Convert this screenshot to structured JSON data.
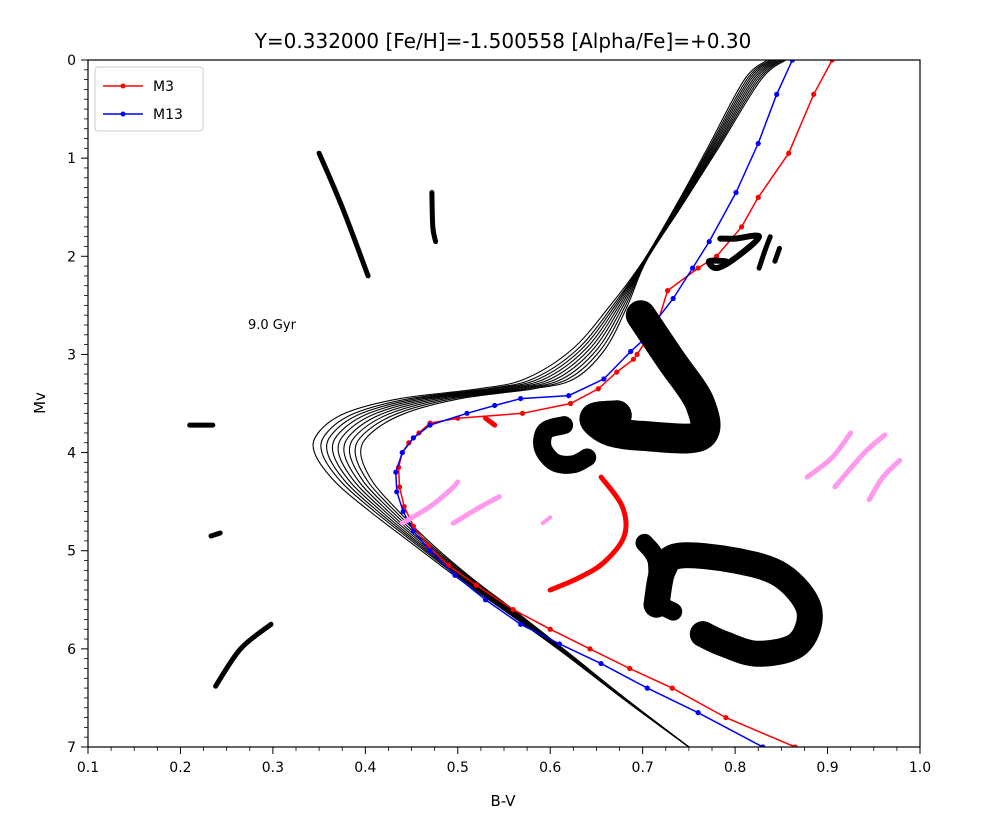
{
  "chart_data": {
    "type": "line",
    "title": "Y=0.332000 [Fe/H]=-1.500558 [Alpha/Fe]=+0.30",
    "xlabel": "B-V",
    "ylabel": "Mv",
    "xlim": [
      0.1,
      1.0
    ],
    "ylim": [
      0,
      7
    ],
    "y_inverted": true,
    "xticks": [
      "0.1",
      "0.2",
      "0.3",
      "0.4",
      "0.5",
      "0.6",
      "0.7",
      "0.8",
      "0.9",
      "1.0"
    ],
    "yticks": [
      "0",
      "1",
      "2",
      "3",
      "4",
      "5",
      "6",
      "7"
    ],
    "legend_position": "top-left",
    "annotation": "9.0 Gyr",
    "series": [
      {
        "name": "M3",
        "color": "#ff0000",
        "marker": true,
        "points": [
          [
            0.905,
            0.0
          ],
          [
            0.885,
            0.35
          ],
          [
            0.858,
            0.95
          ],
          [
            0.825,
            1.4
          ],
          [
            0.807,
            1.7
          ],
          [
            0.78,
            2.0
          ],
          [
            0.76,
            2.12
          ],
          [
            0.727,
            2.35
          ],
          [
            0.716,
            2.68
          ],
          [
            0.694,
            3.0
          ],
          [
            0.69,
            3.05
          ],
          [
            0.672,
            3.18
          ],
          [
            0.652,
            3.35
          ],
          [
            0.622,
            3.5
          ],
          [
            0.57,
            3.6
          ],
          [
            0.5,
            3.65
          ],
          [
            0.47,
            3.7
          ],
          [
            0.458,
            3.8
          ],
          [
            0.447,
            3.9
          ],
          [
            0.44,
            4.0
          ],
          [
            0.436,
            4.15
          ],
          [
            0.437,
            4.35
          ],
          [
            0.442,
            4.55
          ],
          [
            0.452,
            4.75
          ],
          [
            0.468,
            4.95
          ],
          [
            0.49,
            5.15
          ],
          [
            0.52,
            5.35
          ],
          [
            0.56,
            5.6
          ],
          [
            0.6,
            5.8
          ],
          [
            0.643,
            6.0
          ],
          [
            0.686,
            6.2
          ],
          [
            0.732,
            6.4
          ],
          [
            0.79,
            6.7
          ],
          [
            0.865,
            7.0
          ]
        ]
      },
      {
        "name": "M13",
        "color": "#0000ff",
        "marker": true,
        "points": [
          [
            0.862,
            0.0
          ],
          [
            0.845,
            0.35
          ],
          [
            0.825,
            0.85
          ],
          [
            0.801,
            1.35
          ],
          [
            0.772,
            1.85
          ],
          [
            0.754,
            2.12
          ],
          [
            0.733,
            2.43
          ],
          [
            0.715,
            2.65
          ],
          [
            0.701,
            2.85
          ],
          [
            0.687,
            2.97
          ],
          [
            0.658,
            3.25
          ],
          [
            0.62,
            3.42
          ],
          [
            0.568,
            3.45
          ],
          [
            0.54,
            3.52
          ],
          [
            0.51,
            3.6
          ],
          [
            0.47,
            3.72
          ],
          [
            0.452,
            3.85
          ],
          [
            0.44,
            4.0
          ],
          [
            0.433,
            4.2
          ],
          [
            0.434,
            4.4
          ],
          [
            0.441,
            4.6
          ],
          [
            0.452,
            4.8
          ],
          [
            0.47,
            5.0
          ],
          [
            0.497,
            5.25
          ],
          [
            0.53,
            5.5
          ],
          [
            0.568,
            5.75
          ],
          [
            0.61,
            5.95
          ],
          [
            0.655,
            6.15
          ],
          [
            0.705,
            6.4
          ],
          [
            0.76,
            6.65
          ],
          [
            0.83,
            7.0
          ]
        ]
      }
    ],
    "isochrones": {
      "color": "#000000",
      "count": 9,
      "base_points": [
        [
          0.845,
          0.0
        ],
        [
          0.82,
          0.2
        ],
        [
          0.78,
          0.9
        ],
        [
          0.745,
          1.5
        ],
        [
          0.712,
          2.05
        ],
        [
          0.69,
          2.5
        ],
        [
          0.662,
          2.95
        ],
        [
          0.625,
          3.25
        ],
        [
          0.58,
          3.35
        ],
        [
          0.5,
          3.45
        ],
        [
          0.44,
          3.6
        ],
        [
          0.405,
          3.8
        ],
        [
          0.395,
          4.0
        ],
        [
          0.41,
          4.3
        ],
        [
          0.44,
          4.6
        ],
        [
          0.48,
          4.95
        ],
        [
          0.525,
          5.3
        ],
        [
          0.575,
          5.65
        ],
        [
          0.63,
          6.05
        ],
        [
          0.69,
          6.5
        ],
        [
          0.76,
          7.0
        ]
      ],
      "shift_scale": [
        [
          0.0,
          0.0
        ],
        [
          2.0,
          0.0
        ],
        [
          3.0,
          0.3
        ],
        [
          3.5,
          0.55
        ],
        [
          4.0,
          0.4
        ],
        [
          5.0,
          0.15
        ],
        [
          6.0,
          0.05
        ],
        [
          7.0,
          0.0
        ]
      ],
      "offsets": [
        -0.1,
        -0.08,
        -0.065,
        -0.05,
        -0.035,
        -0.02,
        -0.005,
        0.01,
        0.025
      ],
      "x_spread": [
        0.0,
        0.008,
        0.015,
        0.022,
        0.029,
        0.036,
        0.043,
        0.05,
        0.057
      ]
    },
    "scribbles": [
      {
        "color": "#000000",
        "width": 5,
        "points": [
          [
            0.35,
            0.95
          ],
          [
            0.375,
            1.5
          ],
          [
            0.403,
            2.2
          ]
        ]
      },
      {
        "color": "#000000",
        "width": 5,
        "points": [
          [
            0.472,
            1.35
          ],
          [
            0.473,
            1.7
          ],
          [
            0.476,
            1.85
          ]
        ]
      },
      {
        "color": "#000000",
        "width": 5,
        "points": [
          [
            0.21,
            3.72
          ],
          [
            0.235,
            3.72
          ]
        ]
      },
      {
        "color": "#000000",
        "width": 5,
        "points": [
          [
            0.233,
            4.85
          ],
          [
            0.243,
            4.82
          ]
        ]
      },
      {
        "color": "#000000",
        "width": 5,
        "points": [
          [
            0.238,
            6.38
          ],
          [
            0.265,
            6.0
          ],
          [
            0.298,
            5.75
          ]
        ]
      },
      {
        "color": "#000000",
        "width": 6,
        "points": [
          [
            0.784,
            1.82
          ],
          [
            0.8,
            1.82
          ],
          [
            0.826,
            1.8
          ],
          [
            0.8,
            2.02
          ],
          [
            0.78,
            2.12
          ],
          [
            0.772,
            2.05
          ],
          [
            0.79,
            2.05
          ]
        ]
      },
      {
        "color": "#000000",
        "width": 5,
        "points": [
          [
            0.838,
            1.8
          ],
          [
            0.832,
            1.95
          ],
          [
            0.826,
            2.12
          ]
        ]
      },
      {
        "color": "#000000",
        "width": 5,
        "points": [
          [
            0.848,
            1.92
          ],
          [
            0.843,
            2.05
          ]
        ]
      },
      {
        "color": "#000000",
        "width": 30,
        "points": [
          [
            0.698,
            2.6
          ],
          [
            0.73,
            3.05
          ],
          [
            0.762,
            3.5
          ],
          [
            0.762,
            3.83
          ],
          [
            0.7,
            3.83
          ],
          [
            0.665,
            3.78
          ],
          [
            0.648,
            3.65
          ],
          [
            0.672,
            3.62
          ]
        ]
      },
      {
        "color": "#000000",
        "width": 18,
        "points": [
          [
            0.615,
            3.72
          ],
          [
            0.595,
            3.78
          ],
          [
            0.592,
            3.95
          ],
          [
            0.605,
            4.1
          ],
          [
            0.625,
            4.12
          ],
          [
            0.64,
            4.05
          ]
        ]
      },
      {
        "color": "#000000",
        "width": 26,
        "points": [
          [
            0.715,
            5.55
          ],
          [
            0.722,
            5.2
          ],
          [
            0.74,
            5.05
          ],
          [
            0.8,
            5.1
          ],
          [
            0.85,
            5.25
          ],
          [
            0.88,
            5.6
          ],
          [
            0.868,
            5.95
          ],
          [
            0.825,
            6.05
          ],
          [
            0.788,
            5.95
          ],
          [
            0.765,
            5.85
          ]
        ]
      },
      {
        "color": "#000000",
        "width": 18,
        "points": [
          [
            0.733,
            5.62
          ],
          [
            0.717,
            5.5
          ],
          [
            0.715,
            5.1
          ],
          [
            0.702,
            4.92
          ]
        ]
      },
      {
        "color": "#ff0000",
        "width": 5,
        "points": [
          [
            0.655,
            4.25
          ],
          [
            0.678,
            4.55
          ],
          [
            0.68,
            4.85
          ],
          [
            0.658,
            5.12
          ],
          [
            0.63,
            5.28
          ],
          [
            0.6,
            5.4
          ]
        ]
      },
      {
        "color": "#ff0000",
        "width": 5,
        "points": [
          [
            0.53,
            3.65
          ],
          [
            0.54,
            3.72
          ]
        ]
      },
      {
        "color": "#ff99ee",
        "width": 5,
        "points": [
          [
            0.44,
            4.72
          ],
          [
            0.47,
            4.55
          ],
          [
            0.492,
            4.38
          ],
          [
            0.5,
            4.3
          ]
        ]
      },
      {
        "color": "#ff99ee",
        "width": 5,
        "points": [
          [
            0.495,
            4.72
          ],
          [
            0.525,
            4.55
          ],
          [
            0.545,
            4.45
          ]
        ]
      },
      {
        "color": "#ff99ee",
        "width": 4,
        "points": [
          [
            0.592,
            4.72
          ],
          [
            0.6,
            4.66
          ]
        ]
      },
      {
        "color": "#ff99ee",
        "width": 5,
        "points": [
          [
            0.878,
            4.25
          ],
          [
            0.905,
            4.05
          ],
          [
            0.925,
            3.8
          ]
        ]
      },
      {
        "color": "#ff99ee",
        "width": 5,
        "points": [
          [
            0.908,
            4.35
          ],
          [
            0.94,
            4.0
          ],
          [
            0.962,
            3.82
          ]
        ]
      },
      {
        "color": "#ff99ee",
        "width": 5,
        "points": [
          [
            0.945,
            4.48
          ],
          [
            0.96,
            4.25
          ],
          [
            0.978,
            4.08
          ]
        ]
      }
    ]
  }
}
